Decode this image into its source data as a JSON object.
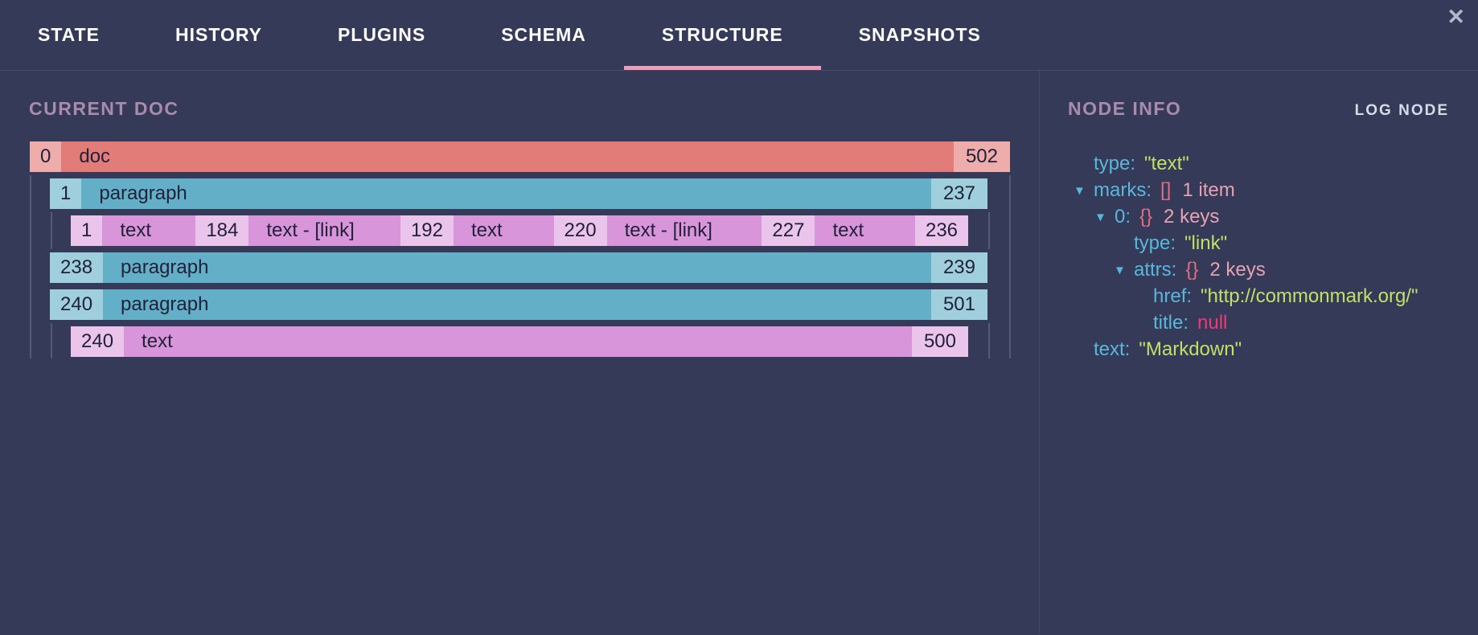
{
  "header": {
    "tabs": [
      {
        "label": "STATE",
        "active": false
      },
      {
        "label": "HISTORY",
        "active": false
      },
      {
        "label": "PLUGINS",
        "active": false
      },
      {
        "label": "SCHEMA",
        "active": false
      },
      {
        "label": "STRUCTURE",
        "active": true
      },
      {
        "label": "SNAPSHOTS",
        "active": false
      }
    ],
    "close_icon": "✕"
  },
  "doc_panel": {
    "title": "CURRENT DOC",
    "rows": [
      {
        "node": "doc",
        "start": "0",
        "label": "doc",
        "end": "502"
      },
      {
        "node": "paragraph",
        "start": "1",
        "label": "paragraph",
        "end": "237"
      },
      {
        "node": "text-segments",
        "segments": [
          {
            "kind": "tag",
            "text": "1"
          },
          {
            "kind": "bar",
            "text": "text"
          },
          {
            "kind": "tag",
            "text": "184"
          },
          {
            "kind": "bar",
            "text": "text - [link]"
          },
          {
            "kind": "tag",
            "text": "192"
          },
          {
            "kind": "bar",
            "text": "text"
          },
          {
            "kind": "tag",
            "text": "220"
          },
          {
            "kind": "bar",
            "text": "text - [link]"
          },
          {
            "kind": "tag",
            "text": "227"
          },
          {
            "kind": "bar",
            "text": "text"
          },
          {
            "kind": "tag",
            "text": "236"
          }
        ]
      },
      {
        "node": "paragraph",
        "start": "238",
        "label": "paragraph",
        "end": "239"
      },
      {
        "node": "paragraph",
        "start": "240",
        "label": "paragraph",
        "end": "501"
      },
      {
        "node": "text",
        "start": "240",
        "label": "text",
        "end": "500"
      }
    ]
  },
  "node_info": {
    "title": "NODE INFO",
    "log_button": "LOG NODE",
    "tree": [
      {
        "key": "type:",
        "value": "\"text\""
      },
      {
        "key": "marks:",
        "punct": "[]",
        "meta": "1 item"
      },
      {
        "key": "0:",
        "punct": "{}",
        "meta": "2 keys"
      },
      {
        "key": "type:",
        "value": "\"link\""
      },
      {
        "key": "attrs:",
        "punct": "{}",
        "meta": "2 keys"
      },
      {
        "key": "href:",
        "value": "\"http://commonmark.org/\""
      },
      {
        "key": "title:",
        "value": "null"
      },
      {
        "key": "text:",
        "value": "\"Markdown\""
      }
    ],
    "expander_icon": "▼"
  },
  "colors": {
    "background": "#363a59",
    "tab_underline": "#ee9cb7",
    "panel_heading": "#a98bab",
    "doc_main": "#e27c79",
    "doc_light": "#eeacaa",
    "paragraph_main": "#63afc7",
    "paragraph_light": "#9fcfdc",
    "text_main": "#d995da",
    "text_light": "#ebc4ec",
    "json_key": "#59b7dc",
    "json_string": "#c1e066",
    "json_punct": "#e26e85",
    "json_meta": "#e7a1b2",
    "json_null": "#ed3b79"
  }
}
